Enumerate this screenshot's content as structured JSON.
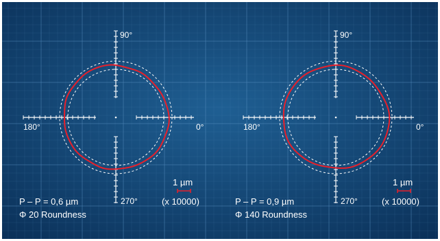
{
  "colors": {
    "background_dark": "#0a2f57",
    "background_light": "#1f5f93",
    "grid": "#5a92c4",
    "trace": "#e8202a",
    "tolerance": "#ffffff",
    "axis": "#ffffff",
    "scale_bar": "#e8202a"
  },
  "scale": {
    "unit_label": "1 µm",
    "magnification": "(x 10000)"
  },
  "panels": [
    {
      "angles": {
        "top": "90°",
        "left": "180°",
        "right": "0°",
        "bottom": "270°"
      },
      "peak_to_peak": "P – P = 0,6 µm",
      "roundness": "Φ 20 Roundness"
    },
    {
      "angles": {
        "top": "90°",
        "left": "180°",
        "right": "0°",
        "bottom": "270°"
      },
      "peak_to_peak": "P – P = 0,9 µm",
      "roundness": "Φ 140 Roundness"
    }
  ]
}
